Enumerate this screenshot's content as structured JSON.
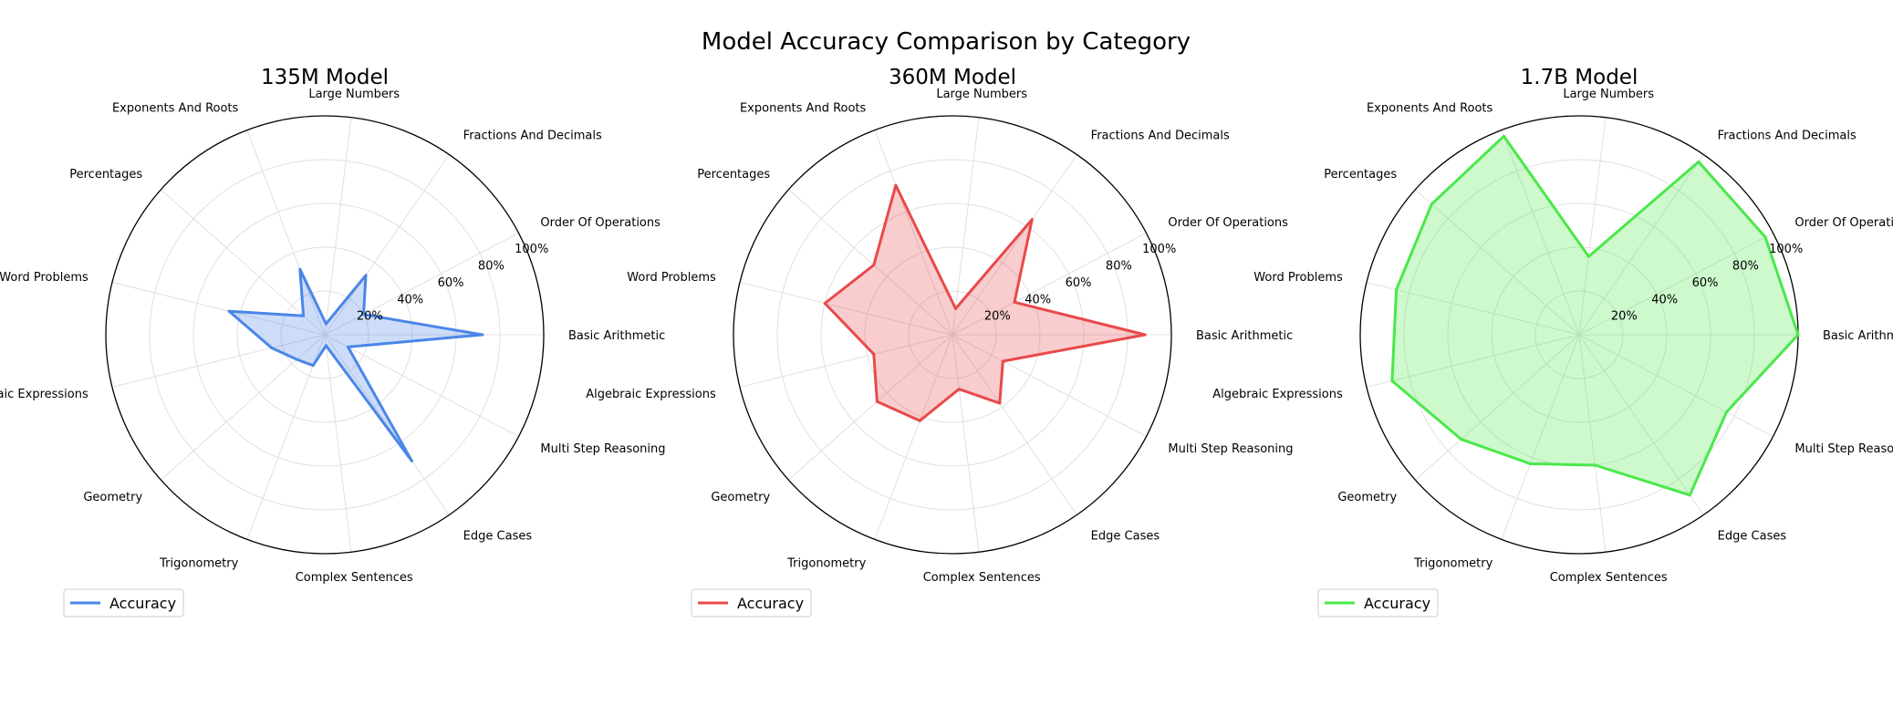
{
  "chart_data": {
    "title": "Model Accuracy Comparison by Category",
    "type": "radar",
    "categories": [
      "Basic Arithmetic",
      "Order Of Operations",
      "Fractions And Decimals",
      "Large Numbers",
      "Exponents And Roots",
      "Percentages",
      "Word Problems",
      "Algebraic Expressions",
      "Geometry",
      "Trigonometry",
      "Complex Sentences",
      "Edge Cases",
      "Multi Step Reasoning"
    ],
    "r_ticks": [
      "20%",
      "40%",
      "60%",
      "80%",
      "100%"
    ],
    "r_range": [
      0,
      100
    ],
    "grid": true,
    "legend_position": "lower-left",
    "panels": [
      {
        "title": "135M Model",
        "series": [
          {
            "name": "Accuracy",
            "color": "#4a86e8",
            "values": [
              72,
              20,
              33,
              5,
              32,
              13,
              45,
              25,
              17,
              15,
              5,
              70,
              12
            ]
          }
        ]
      },
      {
        "title": "360M Model",
        "series": [
          {
            "name": "Accuracy",
            "color": "#e84a4a",
            "values": [
              88,
              32,
              64,
              12,
              73,
              48,
              60,
              37,
              46,
              42,
              25,
              38,
              26
            ]
          }
        ]
      },
      {
        "title": "1.7B Model",
        "series": [
          {
            "name": "Accuracy",
            "color": "#4ae84a",
            "values": [
              100,
              96,
              96,
              36,
              97,
              90,
              86,
              88,
              72,
              63,
              60,
              89,
              76
            ]
          }
        ]
      }
    ]
  }
}
